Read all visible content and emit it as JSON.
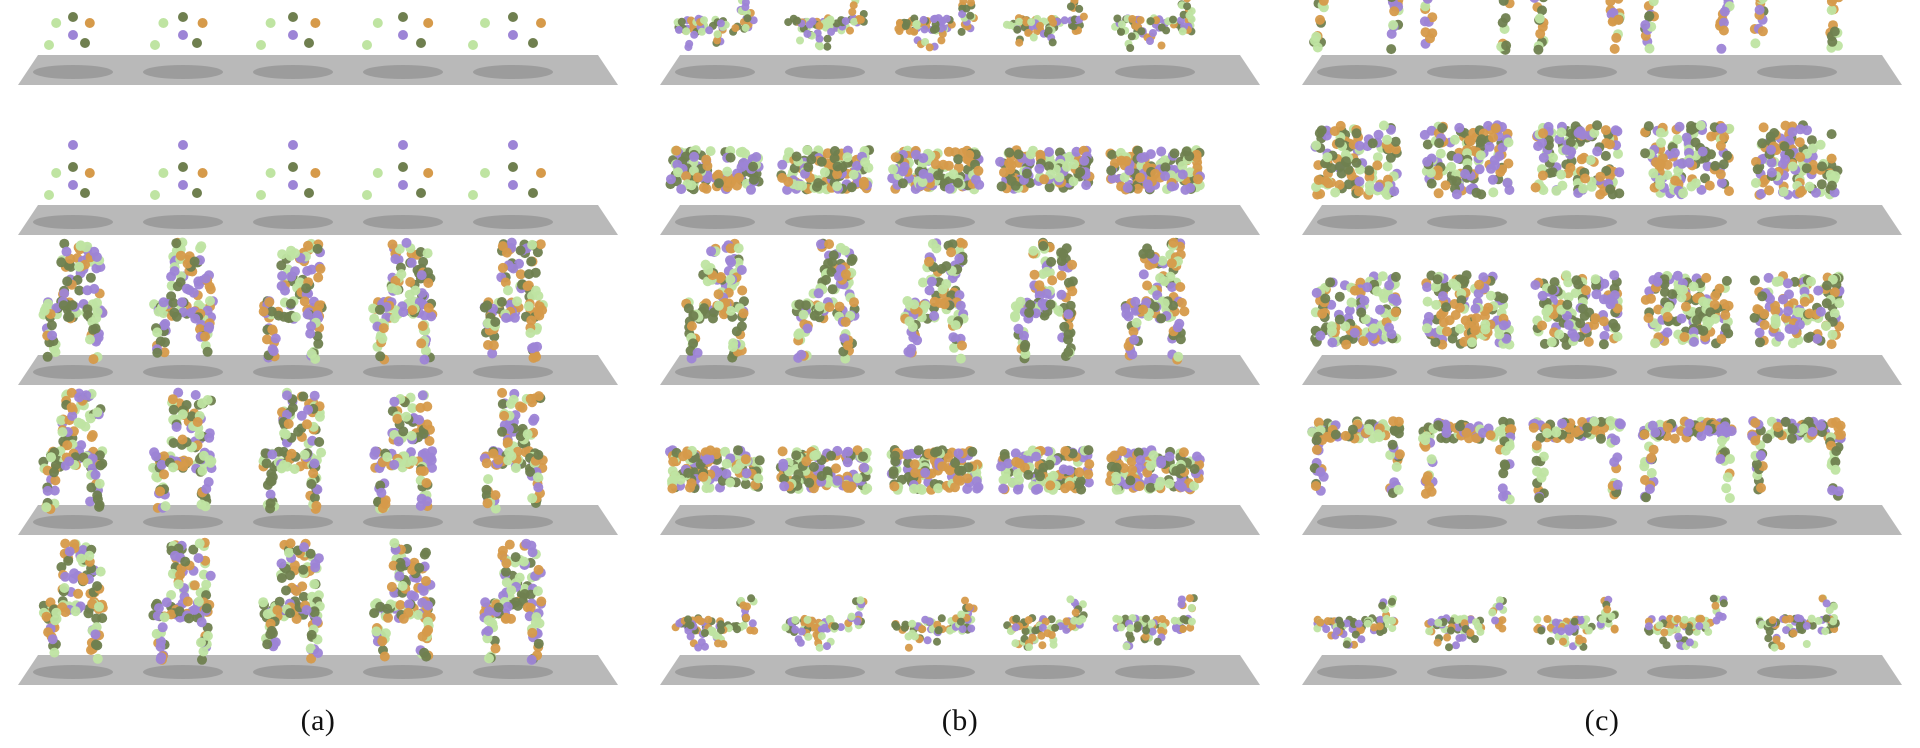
{
  "figure": {
    "panels": [
      {
        "label": "(a)",
        "rows": [
          {
            "shape": "points"
          },
          {
            "shape": "points"
          },
          {
            "shape": "chair-sparse"
          },
          {
            "shape": "chair-mid"
          },
          {
            "shape": "chair-dense"
          }
        ]
      },
      {
        "label": "(b)",
        "rows": [
          {
            "shape": "airplane"
          },
          {
            "shape": "car"
          },
          {
            "shape": "chair-sofa"
          },
          {
            "shape": "car"
          },
          {
            "shape": "airplane"
          }
        ]
      },
      {
        "label": "(c)",
        "rows": [
          {
            "shape": "table-to-gun"
          },
          {
            "shape": "sofa-to-airplane"
          },
          {
            "shape": "gun-to-chair"
          },
          {
            "shape": "table-to-chair"
          },
          {
            "shape": "airplane-to-car"
          }
        ]
      }
    ],
    "colors": {
      "purple": "#9d84d6",
      "green": "#bfe4a2",
      "olive": "#6f7f4f",
      "orange": "#d69a4a",
      "floor": "#b9b9b9",
      "shadow": "#7a7a7a"
    }
  }
}
